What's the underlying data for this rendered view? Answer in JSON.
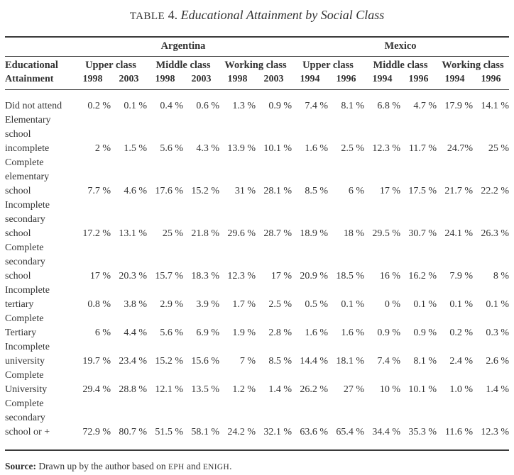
{
  "title": {
    "table_word": "TABLE",
    "table_number": "4.",
    "caption": "Educational Attainment by Social Class"
  },
  "table": {
    "countries": [
      "Argentina",
      "Mexico"
    ],
    "row_header": {
      "line1": "Educational",
      "line2": "Attainment"
    },
    "class_groups": [
      {
        "country": "Argentina",
        "label": "Upper class",
        "years": [
          "1998",
          "2003"
        ]
      },
      {
        "country": "Argentina",
        "label": "Middle class",
        "years": [
          "1998",
          "2003"
        ]
      },
      {
        "country": "Argentina",
        "label": "Working class",
        "years": [
          "1998",
          "2003"
        ]
      },
      {
        "country": "Mexico",
        "label": "Upper class",
        "years": [
          "1994",
          "1996"
        ]
      },
      {
        "country": "Mexico",
        "label": "Middle class",
        "years": [
          "1994",
          "1996"
        ]
      },
      {
        "country": "Mexico",
        "label": "Working class",
        "years": [
          "1994",
          "1996"
        ]
      }
    ],
    "rows": [
      {
        "label": "Did not attend",
        "values": [
          "0.2 %",
          "0.1 %",
          "0.4 %",
          "0.6 %",
          "1.3 %",
          "0.9 %",
          "7.4 %",
          "8.1 %",
          "6.8 %",
          "4.7 %",
          "17.9 %",
          "14.1 %"
        ]
      },
      {
        "label": "Elementary\nschool\nincomplete",
        "values": [
          "2 %",
          "1.5 %",
          "5.6 %",
          "4.3 %",
          "13.9 %",
          "10.1 %",
          "1.6 %",
          "2.5 %",
          "12.3 %",
          "11.7 %",
          "24.7%",
          "25 %"
        ]
      },
      {
        "label": "Complete\nelementary\nschool",
        "values": [
          "7.7 %",
          "4.6 %",
          "17.6 %",
          "15.2 %",
          "31 %",
          "28.1 %",
          "8.5 %",
          "6 %",
          "17 %",
          "17.5 %",
          "21.7 %",
          "22.2 %"
        ]
      },
      {
        "label": "Incomplete\nsecondary\nschool",
        "values": [
          "17.2 %",
          "13.1 %",
          "25 %",
          "21.8 %",
          "29.6 %",
          "28.7 %",
          "18.9 %",
          "18 %",
          "29.5 %",
          "30.7 %",
          "24.1 %",
          "26.3 %"
        ]
      },
      {
        "label": "Complete\nsecondary\nschool",
        "values": [
          "17 %",
          "20.3 %",
          "15.7 %",
          "18.3 %",
          "12.3 %",
          "17 %",
          "20.9 %",
          "18.5 %",
          "16 %",
          "16.2 %",
          "7.9 %",
          "8 %"
        ]
      },
      {
        "label": "Incomplete\ntertiary",
        "values": [
          "0.8 %",
          "3.8 %",
          "2.9 %",
          "3.9 %",
          "1.7 %",
          "2.5 %",
          "0.5 %",
          "0.1 %",
          "0 %",
          "0.1 %",
          "0.1 %",
          "0.1 %"
        ]
      },
      {
        "label": "Complete\nTertiary",
        "values": [
          "6 %",
          "4.4 %",
          "5.6 %",
          "6.9 %",
          "1.9 %",
          "2.8 %",
          "1.6 %",
          "1.6 %",
          "0.9 %",
          "0.9 %",
          "0.2 %",
          "0.3 %"
        ]
      },
      {
        "label": "Incomplete\nuniversity",
        "values": [
          "19.7 %",
          "23.4 %",
          "15.2 %",
          "15.6 %",
          "7 %",
          "8.5 %",
          "14.4 %",
          "18.1 %",
          "7.4 %",
          "8.1 %",
          "2.4 %",
          "2.6 %"
        ]
      },
      {
        "label": "Complete\nUniversity",
        "values": [
          "29.4 %",
          "28.8 %",
          "12.1 %",
          "13.5 %",
          "1.2 %",
          "1.4 %",
          "26.2 %",
          "27 %",
          "10 %",
          "10.1 %",
          "1.0 %",
          "1.4 %"
        ]
      },
      {
        "label": "Complete\nsecondary\nschool or +",
        "values": [
          "72.9 %",
          "80.7 %",
          "51.5 %",
          "58.1 %",
          "24.2 %",
          "32.1 %",
          "63.6 %",
          "65.4 %",
          "34.4 %",
          "35.3 %",
          "11.6 %",
          "12.3 %"
        ]
      }
    ]
  },
  "footer": {
    "source_label": "Source:",
    "source_body": "Drawn up by the author based on",
    "abbr_eph": "EPH",
    "conjunction": "and",
    "abbr_enigh": "ENIGH",
    "terminator": "."
  },
  "colors": {
    "text": "#333333",
    "rule": "#3a3a3a",
    "background": "#ffffff"
  }
}
